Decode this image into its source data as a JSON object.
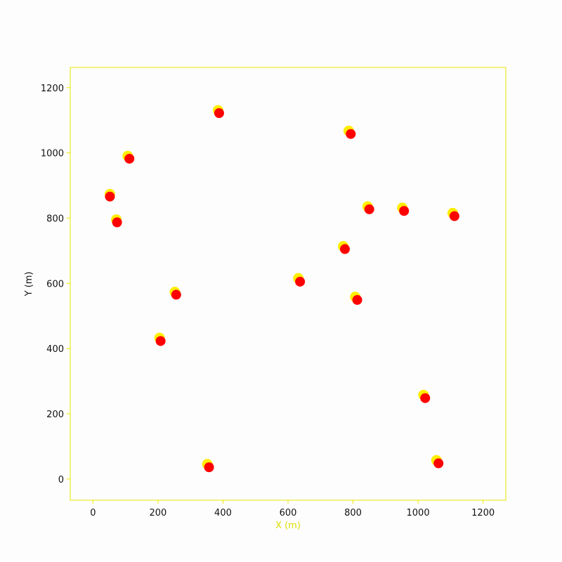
{
  "chart_data": {
    "type": "scatter",
    "title": "",
    "xlabel": "X (m)",
    "ylabel": "Y (m)",
    "xlim": [
      -70,
      1270
    ],
    "ylim": [
      -65,
      1262
    ],
    "xticks": [
      0,
      200,
      400,
      600,
      800,
      1000,
      1200
    ],
    "yticks": [
      0,
      200,
      400,
      600,
      800,
      1000,
      1200
    ],
    "grid": false,
    "legend": "none",
    "series": [
      {
        "name": "yellow",
        "color": "#ffee00",
        "points": [
          [
            110,
            985
          ],
          [
            55,
            868
          ],
          [
            75,
            790
          ],
          [
            388,
            1125
          ],
          [
            790,
            1062
          ],
          [
            848,
            830
          ],
          [
            955,
            826
          ],
          [
            1110,
            810
          ],
          [
            773,
            708
          ],
          [
            635,
            610
          ],
          [
            810,
            553
          ],
          [
            255,
            568
          ],
          [
            208,
            427
          ],
          [
            1020,
            252
          ],
          [
            355,
            40
          ],
          [
            1060,
            52
          ]
        ]
      },
      {
        "name": "red",
        "color": "#ff0000",
        "points": [
          [
            112,
            982
          ],
          [
            52,
            866
          ],
          [
            74,
            787
          ],
          [
            388,
            1122
          ],
          [
            793,
            1058
          ],
          [
            850,
            827
          ],
          [
            957,
            822
          ],
          [
            1112,
            806
          ],
          [
            775,
            705
          ],
          [
            637,
            605
          ],
          [
            813,
            549
          ],
          [
            256,
            565
          ],
          [
            208,
            423
          ],
          [
            1022,
            248
          ],
          [
            357,
            36
          ],
          [
            1063,
            48
          ]
        ]
      }
    ],
    "axis_color": "#e8e800",
    "tick_text_color": "#111111"
  }
}
